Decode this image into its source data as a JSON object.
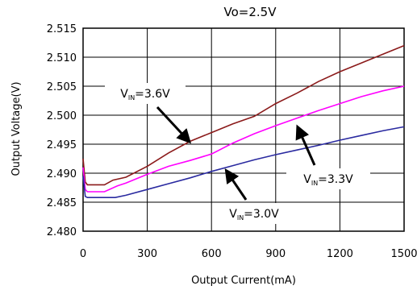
{
  "chart_data": {
    "type": "line",
    "title": "Vo=2.5V",
    "xlabel": "Output Current(mA)",
    "ylabel": "Output Voltage(V)",
    "xlim": [
      0,
      1500
    ],
    "ylim": [
      2.48,
      2.515
    ],
    "xticks": [
      "0",
      "300",
      "600",
      "900",
      "1200",
      "1500"
    ],
    "yticks": [
      "2.480",
      "2.485",
      "2.490",
      "2.495",
      "2.500",
      "2.505",
      "2.510",
      "2.515"
    ],
    "grid": true,
    "series": [
      {
        "name": "Vin=3.6V",
        "color": "#8b1a1a",
        "points": [
          [
            0,
            2.4925
          ],
          [
            10,
            2.4885
          ],
          [
            20,
            2.488
          ],
          [
            60,
            2.488
          ],
          [
            100,
            2.488
          ],
          [
            140,
            2.4888
          ],
          [
            200,
            2.4893
          ],
          [
            300,
            2.4912
          ],
          [
            400,
            2.4935
          ],
          [
            500,
            2.4955
          ],
          [
            600,
            2.497
          ],
          [
            700,
            2.4985
          ],
          [
            800,
            2.4998
          ],
          [
            900,
            2.502
          ],
          [
            1000,
            2.5038
          ],
          [
            1100,
            2.5058
          ],
          [
            1200,
            2.5075
          ],
          [
            1300,
            2.509
          ],
          [
            1400,
            2.5105
          ],
          [
            1500,
            2.512
          ]
        ]
      },
      {
        "name": "Vin=3.3V",
        "color": "#ff00ff",
        "points": [
          [
            0,
            2.491
          ],
          [
            10,
            2.4872
          ],
          [
            20,
            2.4868
          ],
          [
            60,
            2.4868
          ],
          [
            100,
            2.4868
          ],
          [
            160,
            2.4878
          ],
          [
            200,
            2.4883
          ],
          [
            300,
            2.4898
          ],
          [
            400,
            2.4912
          ],
          [
            500,
            2.4922
          ],
          [
            600,
            2.4933
          ],
          [
            700,
            2.4952
          ],
          [
            800,
            2.4968
          ],
          [
            900,
            2.4982
          ],
          [
            1000,
            2.4995
          ],
          [
            1100,
            2.5008
          ],
          [
            1200,
            2.502
          ],
          [
            1300,
            2.5032
          ],
          [
            1400,
            2.5042
          ],
          [
            1500,
            2.505
          ]
        ]
      },
      {
        "name": "Vin=3.0V",
        "color": "#2a2aa0",
        "points": [
          [
            0,
            2.4895
          ],
          [
            10,
            2.486
          ],
          [
            20,
            2.4858
          ],
          [
            60,
            2.4858
          ],
          [
            150,
            2.4858
          ],
          [
            200,
            2.4862
          ],
          [
            300,
            2.4872
          ],
          [
            400,
            2.4882
          ],
          [
            500,
            2.4892
          ],
          [
            600,
            2.4903
          ],
          [
            700,
            2.4913
          ],
          [
            800,
            2.4923
          ],
          [
            900,
            2.4932
          ],
          [
            1000,
            2.494
          ],
          [
            1100,
            2.4948
          ],
          [
            1200,
            2.4957
          ],
          [
            1300,
            2.4965
          ],
          [
            1400,
            2.4973
          ],
          [
            1500,
            2.498
          ]
        ]
      }
    ],
    "annotations": [
      {
        "label_main": "V",
        "label_sub": "IN",
        "label_rest": "=3.6V",
        "series": "Vin=3.6V",
        "target": [
          500,
          2.4955
        ]
      },
      {
        "label_main": "V",
        "label_sub": "IN",
        "label_rest": "=3.3V",
        "series": "Vin=3.3V",
        "target": [
          1000,
          2.4995
        ]
      },
      {
        "label_main": "V",
        "label_sub": "IN",
        "label_rest": "=3.0V",
        "series": "Vin=3.0V",
        "target": [
          630,
          2.4903
        ]
      }
    ]
  }
}
